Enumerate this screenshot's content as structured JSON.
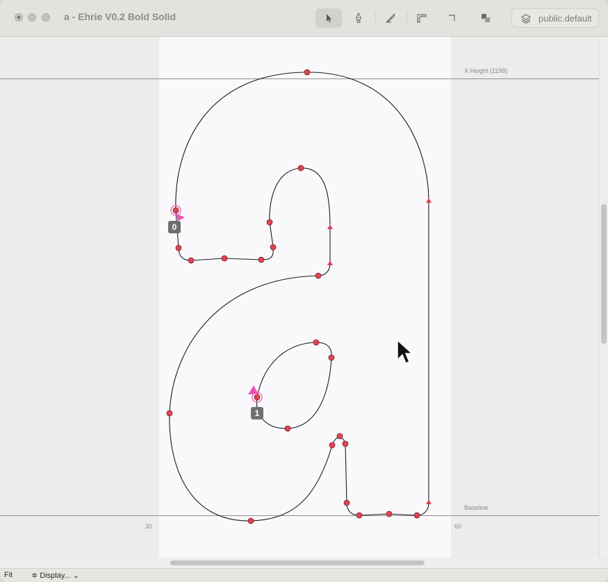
{
  "window": {
    "title": "a - Ehrie V0.2 Bold Solid"
  },
  "toolbar": {
    "tools": [
      {
        "id": "pointer",
        "icon": "pointer-icon",
        "active": true
      },
      {
        "id": "pen",
        "icon": "pen-icon",
        "active": false
      },
      {
        "id": "knife",
        "icon": "knife-icon",
        "active": false
      },
      {
        "id": "metrics",
        "icon": "ruler-icon",
        "active": false
      },
      {
        "id": "corner",
        "icon": "corner-icon",
        "active": false
      },
      {
        "id": "components",
        "icon": "components-icon",
        "active": false
      }
    ],
    "layer_label": "public.default"
  },
  "canvas": {
    "xheight_label": "X Height (1198)",
    "baseline_label": "Baseline",
    "ruler_left": "30",
    "ruler_right": "60",
    "start_labels": [
      "0",
      "1"
    ]
  },
  "status": {
    "fit_label": "Fit",
    "display_label": "≑ Display... ⌄"
  },
  "colors": {
    "point_fill": "#e04553",
    "start_point": "#f050b0",
    "guide": "#8f8f8f",
    "glyph_bg": "#f9f9fc"
  }
}
